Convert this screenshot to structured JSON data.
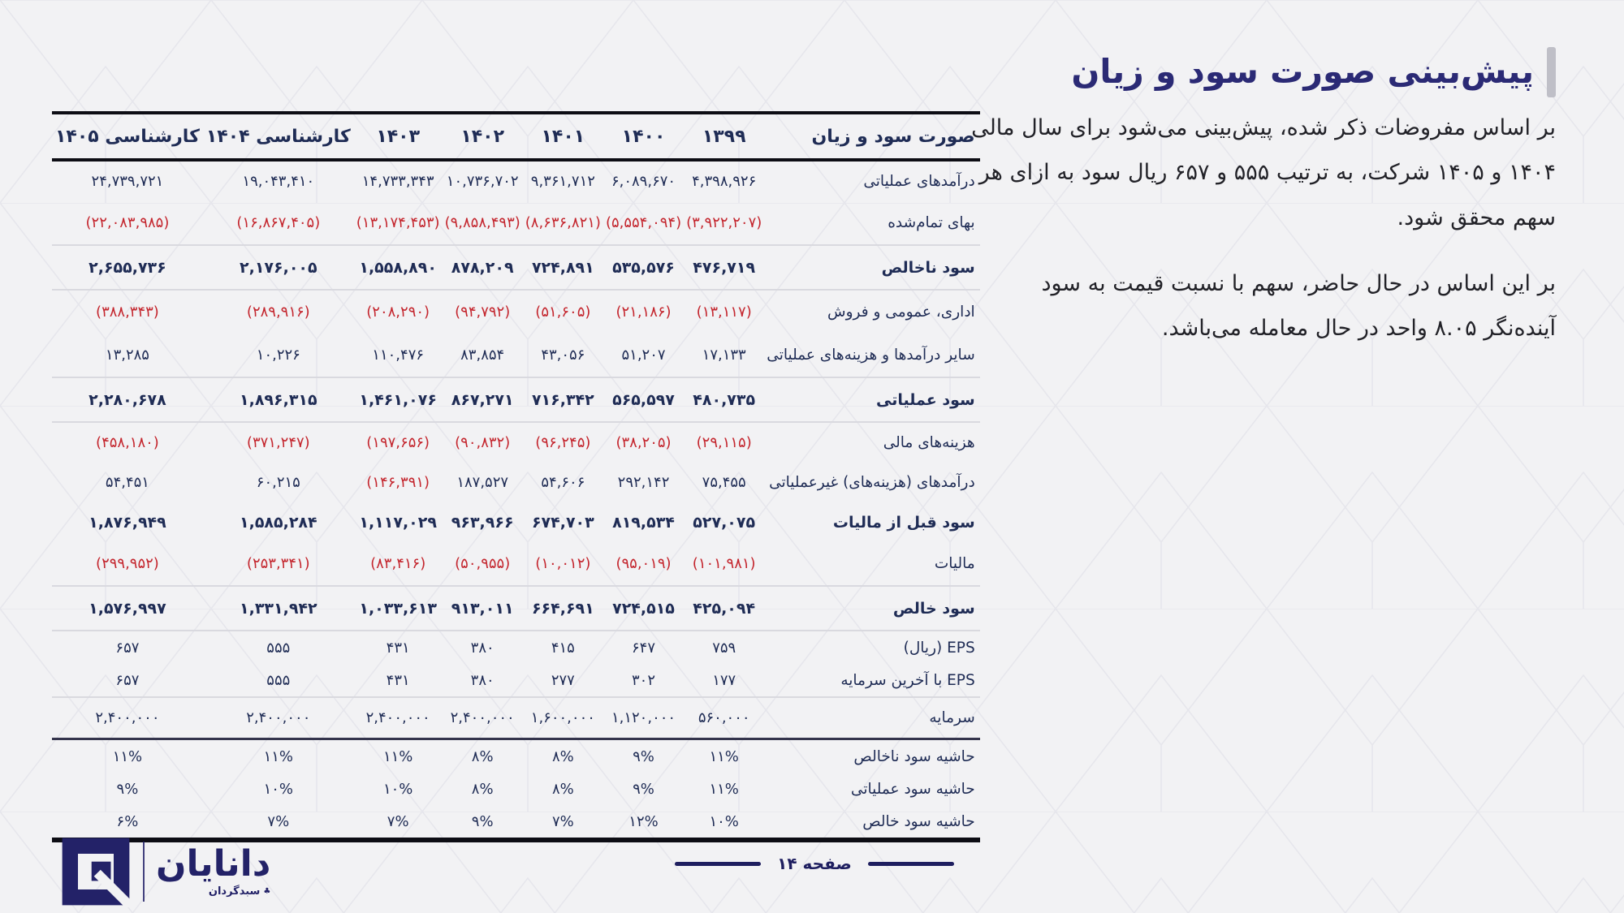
{
  "colors": {
    "page_background": "#f2f2f4",
    "navy_text": "#1f2c55",
    "negative_red": "#c4262e",
    "title_navy": "#2b2a75",
    "footer_navy": "#1e1e5f",
    "logo_navy": "#232268",
    "table_border_black": "#0d0d14"
  },
  "page": {
    "title": "پیش‌بینی صورت سود و زیان",
    "paragraphs": [
      "بر اساس مفروضات ذکر شده، پیش‌بینی می‌شود برای سال مالی ۱۴۰۴ و ۱۴۰۵ شرکت، به ترتیب ۵۵۵ و ۶۵۷ ریال سود به ازای هر سهم محقق شود.",
      "بر این اساس در حال حاضر، سهم با نسبت قیمت به سود آینده‌نگر ۸.۰۵ واحد در حال معامله می‌باشد."
    ]
  },
  "footer": {
    "page_label": "صفحه ۱۴",
    "logo": {
      "name": "دانایان",
      "subtitle": "سبدگردان",
      "mark_icon": "♣"
    }
  },
  "table": {
    "header": {
      "title": "صورت سود و زیان",
      "years": [
        "۱۳۹۹",
        "۱۴۰۰",
        "۱۴۰۱",
        "۱۴۰۲",
        "۱۴۰۳",
        "کارشناسی ۱۴۰۴",
        "کارشناسی ۱۴۰۵"
      ]
    },
    "rows": [
      {
        "label": "درآمدهای عملیاتی",
        "emphasis": false,
        "separator": null,
        "values": [
          "۴,۳۹۸,۹۲۶",
          "۶,۰۸۹,۶۷۰",
          "۹,۳۶۱,۷۱۲",
          "۱۰,۷۳۶,۷۰۲",
          "۱۴,۷۳۳,۳۴۳",
          "۱۹,۰۴۳,۴۱۰",
          "۲۴,۷۳۹,۷۲۱"
        ]
      },
      {
        "label": "بهای تمام‌شده",
        "emphasis": false,
        "separator": null,
        "values": [
          "(۳,۹۲۲,۲۰۷)",
          "(۵,۵۵۴,۰۹۴)",
          "(۸,۶۳۶,۸۲۱)",
          "(۹,۸۵۸,۴۹۳)",
          "(۱۳,۱۷۴,۴۵۳)",
          "(۱۶,۸۶۷,۴۰۵)",
          "(۲۲,۰۸۳,۹۸۵)"
        ]
      },
      {
        "label": "سود ناخالص",
        "emphasis": true,
        "separator": "thin",
        "values": [
          "۴۷۶,۷۱۹",
          "۵۳۵,۵۷۶",
          "۷۲۴,۸۹۱",
          "۸۷۸,۲۰۹",
          "۱,۵۵۸,۸۹۰",
          "۲,۱۷۶,۰۰۵",
          "۲,۶۵۵,۷۳۶"
        ]
      },
      {
        "label": "اداری، عمومی و فروش",
        "emphasis": false,
        "separator": "thin",
        "values": [
          "(۱۳,۱۱۷)",
          "(۲۱,۱۸۶)",
          "(۵۱,۶۰۵)",
          "(۹۴,۷۹۲)",
          "(۲۰۸,۲۹۰)",
          "(۲۸۹,۹۱۶)",
          "(۳۸۸,۳۴۳)"
        ]
      },
      {
        "label": "سایر درآمدها و هزینه‌های عملیاتی",
        "emphasis": false,
        "separator": null,
        "values": [
          "۱۷,۱۳۳",
          "۵۱,۲۰۷",
          "۴۳,۰۵۶",
          "۸۳,۸۵۴",
          "۱۱۰,۴۷۶",
          "۱۰,۲۲۶",
          "۱۳,۲۸۵"
        ]
      },
      {
        "label": "سود عملیاتی",
        "emphasis": true,
        "separator": "thin",
        "values": [
          "۴۸۰,۷۳۵",
          "۵۶۵,۵۹۷",
          "۷۱۶,۳۴۲",
          "۸۶۷,۲۷۱",
          "۱,۴۶۱,۰۷۶",
          "۱,۸۹۶,۳۱۵",
          "۲,۲۸۰,۶۷۸"
        ]
      },
      {
        "label": "هزینه‌های مالی",
        "emphasis": false,
        "separator": "thin",
        "values": [
          "(۲۹,۱۱۵)",
          "(۳۸,۲۰۵)",
          "(۹۶,۲۴۵)",
          "(۹۰,۸۳۲)",
          "(۱۹۷,۶۵۶)",
          "(۳۷۱,۲۴۷)",
          "(۴۵۸,۱۸۰)"
        ]
      },
      {
        "label": "درآمدهای (هزینه‌های) غیرعملیاتی",
        "emphasis": false,
        "separator": null,
        "values": [
          "۷۵,۴۵۵",
          "۲۹۲,۱۴۲",
          "۵۴,۶۰۶",
          "۱۸۷,۵۲۷",
          "(۱۴۶,۳۹۱)",
          "۶۰,۲۱۵",
          "۵۴,۴۵۱"
        ]
      },
      {
        "label": "سود قبل از مالیات",
        "emphasis": true,
        "separator": null,
        "values": [
          "۵۲۷,۰۷۵",
          "۸۱۹,۵۳۴",
          "۶۷۴,۷۰۳",
          "۹۶۳,۹۶۶",
          "۱,۱۱۷,۰۲۹",
          "۱,۵۸۵,۲۸۴",
          "۱,۸۷۶,۹۴۹"
        ]
      },
      {
        "label": "مالیات",
        "emphasis": false,
        "separator": null,
        "values": [
          "(۱۰۱,۹۸۱)",
          "(۹۵,۰۱۹)",
          "(۱۰,۰۱۲)",
          "(۵۰,۹۵۵)",
          "(۸۳,۴۱۶)",
          "(۲۵۳,۳۴۱)",
          "(۲۹۹,۹۵۲)"
        ]
      },
      {
        "label": "سود خالص",
        "emphasis": true,
        "separator": "thin",
        "values": [
          "۴۲۵,۰۹۴",
          "۷۲۴,۵۱۵",
          "۶۶۴,۶۹۱",
          "۹۱۳,۰۱۱",
          "۱,۰۳۳,۶۱۳",
          "۱,۳۳۱,۹۴۲",
          "۱,۵۷۶,۹۹۷"
        ]
      },
      {
        "label": "EPS (ریال)",
        "emphasis": false,
        "separator": "thin",
        "values": [
          "۷۵۹",
          "۶۴۷",
          "۴۱۵",
          "۳۸۰",
          "۴۳۱",
          "۵۵۵",
          "۶۵۷"
        ]
      },
      {
        "label": "EPS با آخرین سرمایه",
        "emphasis": false,
        "separator": null,
        "values": [
          "۱۷۷",
          "۳۰۲",
          "۲۷۷",
          "۳۸۰",
          "۴۳۱",
          "۵۵۵",
          "۶۵۷"
        ]
      },
      {
        "label": "سرمایه",
        "emphasis": false,
        "separator": "thin",
        "values": [
          "۵۶۰,۰۰۰",
          "۱,۱۲۰,۰۰۰",
          "۱,۶۰۰,۰۰۰",
          "۲,۴۰۰,۰۰۰",
          "۲,۴۰۰,۰۰۰",
          "۲,۴۰۰,۰۰۰",
          "۲,۴۰۰,۰۰۰"
        ]
      },
      {
        "label": "حاشیه سود ناخالص",
        "emphasis": false,
        "separator": "dark",
        "values": [
          "۱۱%",
          "۹%",
          "۸%",
          "۸%",
          "۱۱%",
          "۱۱%",
          "۱۱%"
        ]
      },
      {
        "label": "حاشیه سود عملیاتی",
        "emphasis": false,
        "separator": null,
        "values": [
          "۱۱%",
          "۹%",
          "۸%",
          "۸%",
          "۱۰%",
          "۱۰%",
          "۹%"
        ]
      },
      {
        "label": "حاشیه سود خالص",
        "emphasis": false,
        "separator": null,
        "values": [
          "۱۰%",
          "۱۲%",
          "۷%",
          "۹%",
          "۷%",
          "۷%",
          "۶%"
        ]
      }
    ]
  }
}
